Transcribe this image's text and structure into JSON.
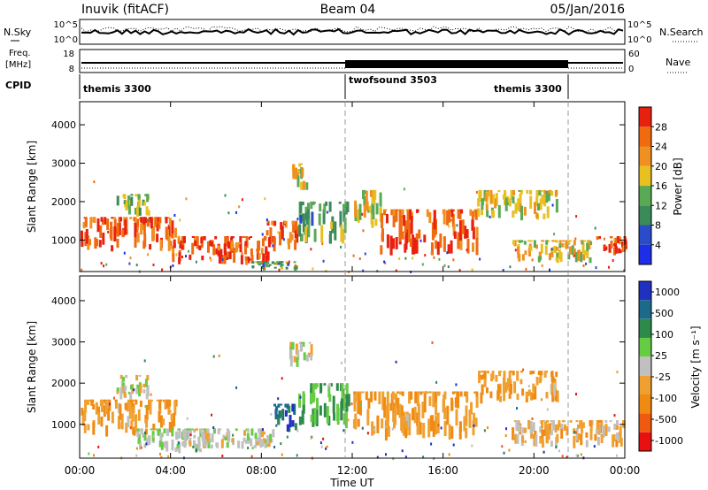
{
  "header": {
    "station": "Inuvik (fitACF)",
    "beam": "Beam 04",
    "date": "05/Jan/2016"
  },
  "top_panels": {
    "nsky_label": "N.Sky",
    "nsky_ticks": [
      "10^5",
      "10^0"
    ],
    "nsearch_label": "N.Search",
    "nsearch_ticks": [
      "10^5",
      "10^0"
    ],
    "freq_label_1": "Freq.",
    "freq_label_2": "[MHz]",
    "freq_ticks": [
      "18",
      "8"
    ],
    "nave_label": "Nave",
    "nave_ticks": [
      "60",
      "0"
    ],
    "cpid_label": "CPID",
    "cpid_segments": [
      {
        "name": "themis 3300",
        "start_h": 0.0,
        "end_h": 12.0
      },
      {
        "name": "twofsound 3503",
        "start_h": 12.0,
        "end_h": 22.0
      },
      {
        "name": "themis 3300",
        "start_h": 22.0,
        "end_h": 24.0
      }
    ]
  },
  "time_axis": {
    "label": "Time UT",
    "ticks": [
      "00:00",
      "04:00",
      "08:00",
      "12:00",
      "16:00",
      "20:00",
      "00:00"
    ]
  },
  "colors": {
    "power_scale": [
      "#1e2ee6",
      "#2a4cc8",
      "#3a8a5a",
      "#5aaa55",
      "#e8c020",
      "#f09020",
      "#f06a10",
      "#e82010"
    ],
    "velocity_scale": [
      "#2030c0",
      "#1c6a8a",
      "#2e8a4a",
      "#66cc44",
      "#c0c0c0",
      "#f0a030",
      "#f08a10",
      "#f05a10",
      "#e81010"
    ]
  },
  "chart_data": [
    {
      "type": "heatmap",
      "ylabel": "Slant Range [km]",
      "xlabel": "",
      "xlim": [
        0,
        24
      ],
      "ylim": [
        180,
        4600
      ],
      "yticks": [
        "1000",
        "2000",
        "3000",
        "4000"
      ],
      "colorbar": {
        "label": "Power [dB]",
        "ticks": [
          "4",
          "8",
          "12",
          "16",
          "20",
          "24",
          "28"
        ],
        "range": [
          0,
          32
        ]
      },
      "regions": [
        {
          "t0": 0.0,
          "t1": 4.2,
          "r0": 700,
          "r1": 1600,
          "v": 27
        },
        {
          "t0": 4.0,
          "t1": 8.5,
          "r0": 350,
          "r1": 1100,
          "v": 28
        },
        {
          "t0": 8.2,
          "t1": 9.6,
          "r0": 700,
          "r1": 1500,
          "v": 26
        },
        {
          "t0": 9.6,
          "t1": 11.8,
          "r0": 900,
          "r1": 2000,
          "v": 12
        },
        {
          "t0": 12.0,
          "t1": 13.2,
          "r0": 1300,
          "r1": 2300,
          "v": 18
        },
        {
          "t0": 13.2,
          "t1": 17.5,
          "r0": 600,
          "r1": 1800,
          "v": 27
        },
        {
          "t0": 17.5,
          "t1": 21.0,
          "r0": 1500,
          "r1": 2300,
          "v": 17
        },
        {
          "t0": 19.0,
          "t1": 22.5,
          "r0": 400,
          "r1": 1000,
          "v": 18
        },
        {
          "t0": 22.7,
          "t1": 24.0,
          "r0": 600,
          "r1": 1100,
          "v": 28
        },
        {
          "t0": 1.6,
          "t1": 3.0,
          "r0": 1600,
          "r1": 2200,
          "v": 14
        },
        {
          "t0": 7.5,
          "t1": 9.5,
          "r0": 200,
          "r1": 450,
          "v": 12
        },
        {
          "t0": 9.3,
          "t1": 10.0,
          "r0": 2300,
          "r1": 3000,
          "v": 18
        }
      ]
    },
    {
      "type": "heatmap",
      "ylabel": "Slant Range [km]",
      "xlabel": "Time UT",
      "xlim": [
        0,
        24
      ],
      "ylim": [
        180,
        4600
      ],
      "yticks": [
        "1000",
        "2000",
        "3000",
        "4000"
      ],
      "colorbar": {
        "label": "Velocity [m s⁻¹]",
        "ticks": [
          "1000",
          "500",
          "100",
          "25",
          "-25",
          "-100",
          "-500",
          "-1000"
        ],
        "range": [
          -1000,
          1000
        ]
      },
      "regions": [
        {
          "t0": 0.0,
          "t1": 4.2,
          "r0": 700,
          "r1": 1600,
          "v": -300
        },
        {
          "t0": 2.5,
          "t1": 5.5,
          "r0": 300,
          "r1": 900,
          "v": 80
        },
        {
          "t0": 4.5,
          "t1": 8.5,
          "r0": 400,
          "r1": 900,
          "v": 0
        },
        {
          "t0": 8.5,
          "t1": 9.6,
          "r0": 800,
          "r1": 1500,
          "v": 700
        },
        {
          "t0": 9.6,
          "t1": 11.8,
          "r0": 900,
          "r1": 2000,
          "v": 300
        },
        {
          "t0": 9.2,
          "t1": 10.2,
          "r0": 2300,
          "r1": 3000,
          "v": 0
        },
        {
          "t0": 12.0,
          "t1": 17.5,
          "r0": 600,
          "r1": 1800,
          "v": -300
        },
        {
          "t0": 17.5,
          "t1": 21.0,
          "r0": 1500,
          "r1": 2300,
          "v": -300
        },
        {
          "t0": 19.0,
          "t1": 24.0,
          "r0": 400,
          "r1": 1100,
          "v": -200
        },
        {
          "t0": 1.6,
          "t1": 3.0,
          "r0": 1600,
          "r1": 2200,
          "v": 0
        }
      ]
    }
  ]
}
